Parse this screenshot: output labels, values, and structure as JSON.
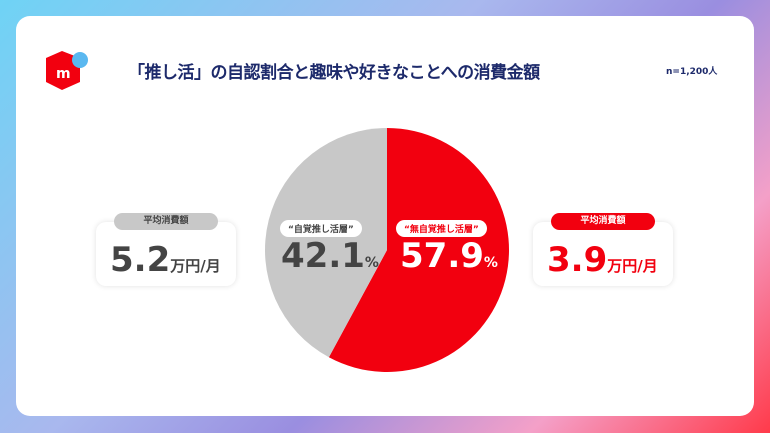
{
  "title": "「推し活」の自認割合と趣味や好きなことへの消費金額",
  "sample": "n=1,200人",
  "logo_letter": "m",
  "colors": {
    "red": "#f2000f",
    "gray": "#c8c8c8",
    "navy": "#1d2a6b",
    "dark": "#444444"
  },
  "chart_data": {
    "type": "pie",
    "slices": [
      {
        "name": "“無自覚推し活層”",
        "value": 57.9,
        "color": "#f2000f"
      },
      {
        "name": "“自覚推し活層”",
        "value": 42.1,
        "color": "#c8c8c8"
      }
    ],
    "labels": {
      "red_value": "57.9",
      "gray_value": "42.1",
      "unit": "%"
    }
  },
  "left_callout": {
    "label": "平均消費額",
    "value": "5.2",
    "unit": "万円/月"
  },
  "right_callout": {
    "label": "平均消費額",
    "value": "3.9",
    "unit": "万円/月"
  }
}
